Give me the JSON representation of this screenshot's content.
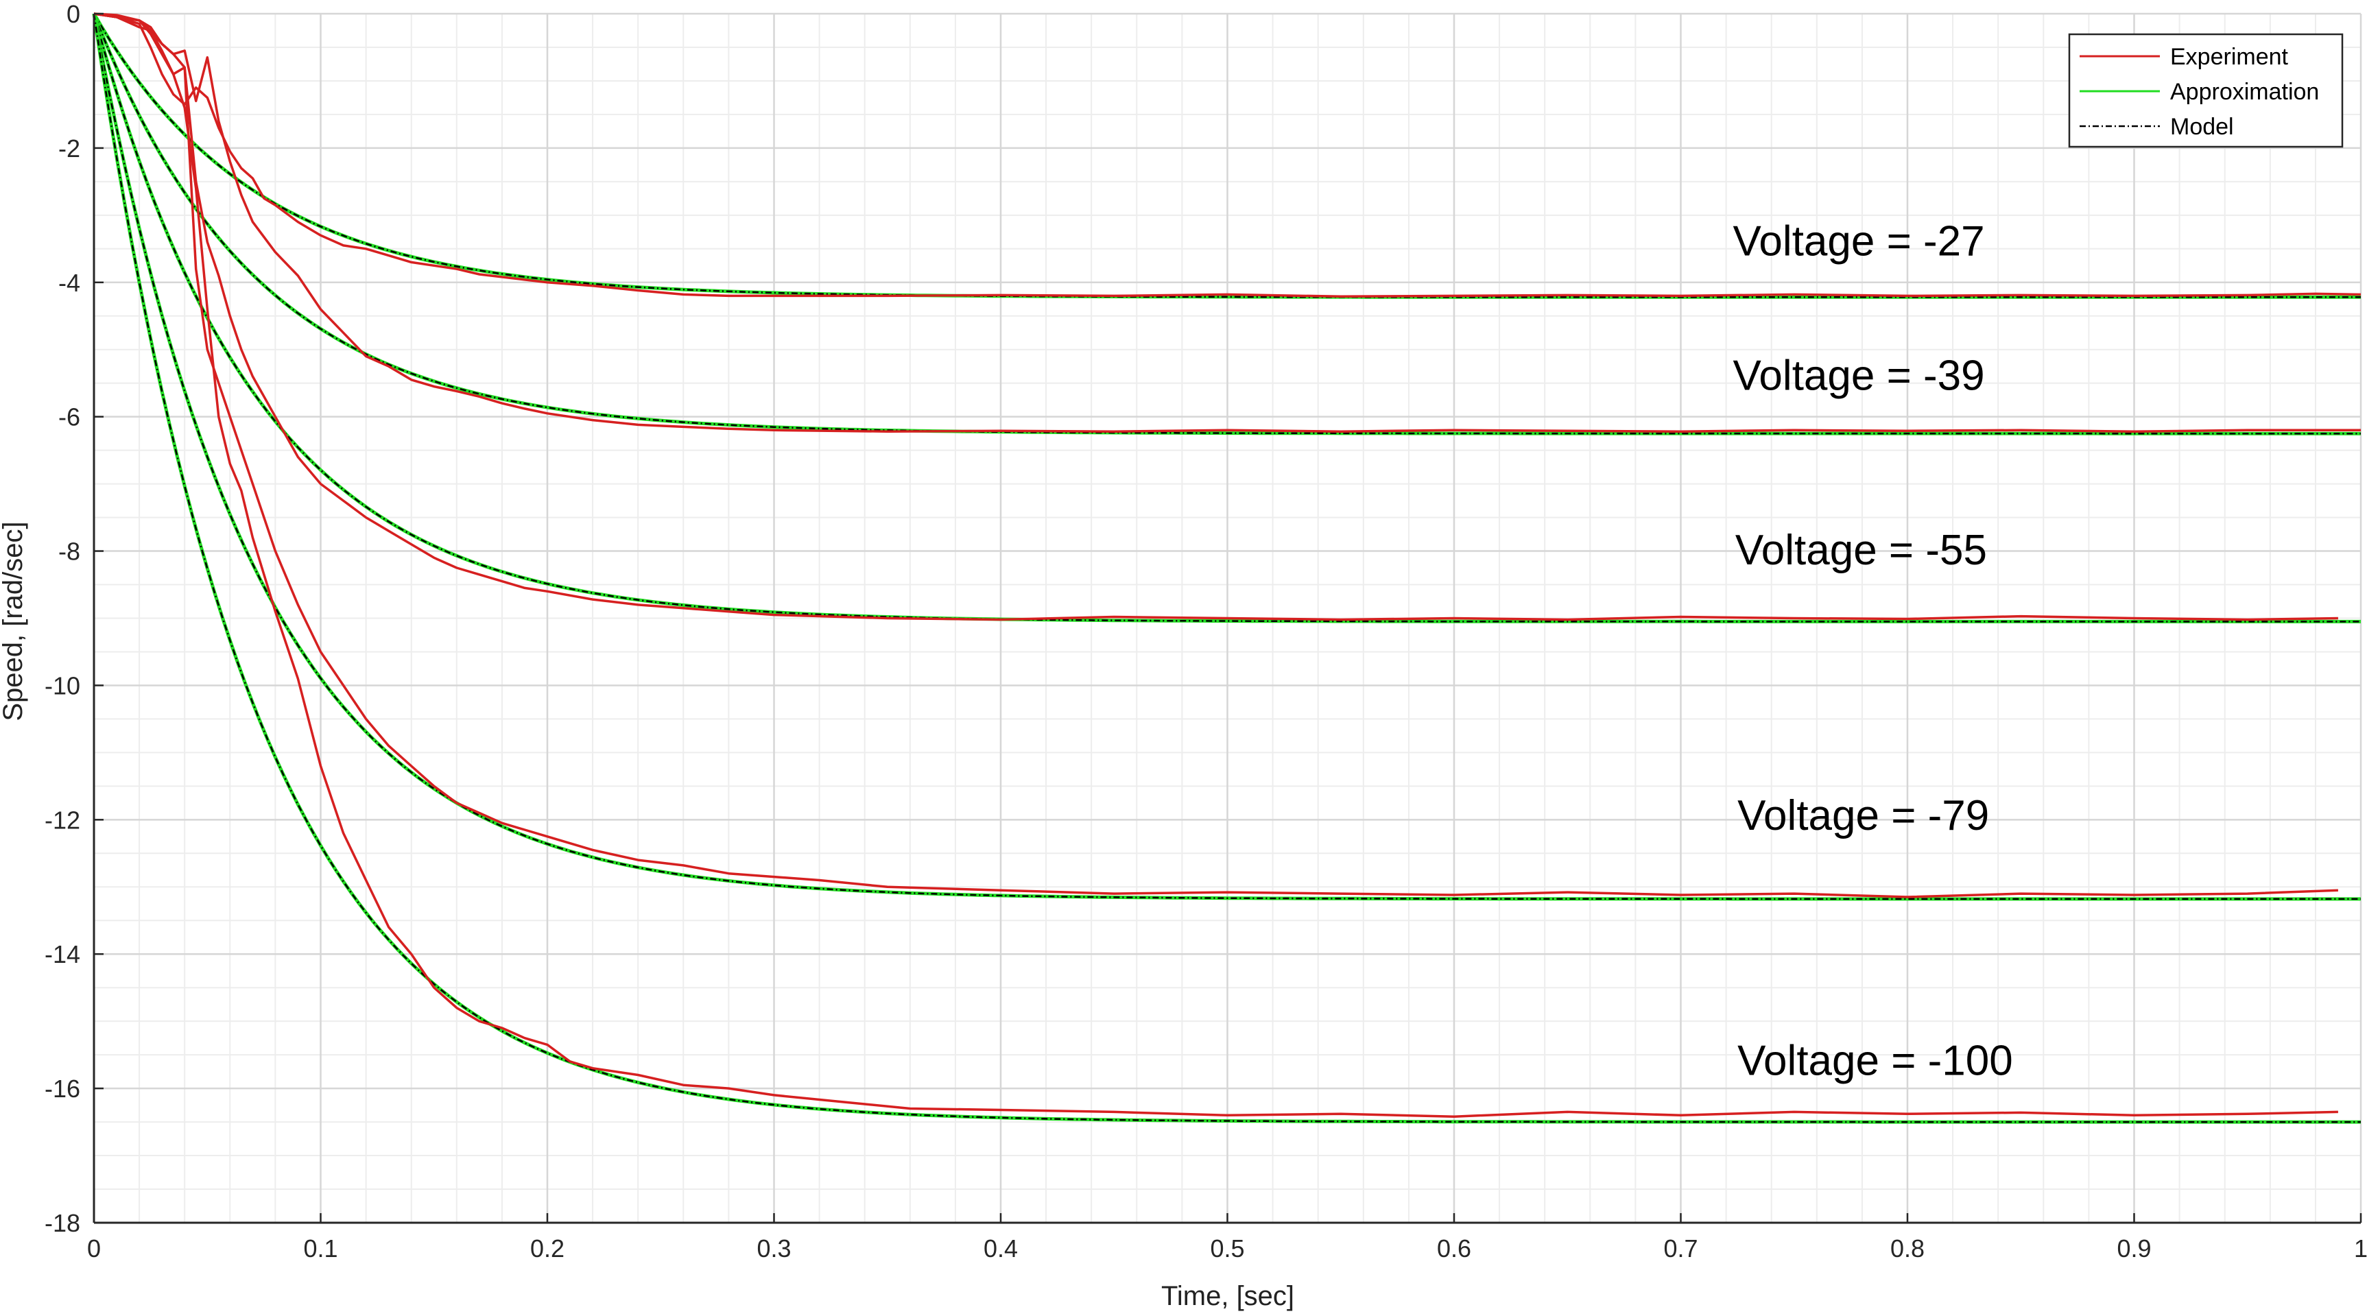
{
  "chart_data": {
    "type": "line",
    "xlabel": "Time, [sec]",
    "ylabel": "Speed, [rad/sec]",
    "xlim": [
      0,
      1
    ],
    "ylim": [
      -18,
      0
    ],
    "xticks": [
      0,
      0.1,
      0.2,
      0.3,
      0.4,
      0.5,
      0.6,
      0.7,
      0.8,
      0.9,
      1
    ],
    "xtick_labels": [
      "0",
      "0.1",
      "0.2",
      "0.3",
      "0.4",
      "0.5",
      "0.6",
      "0.7",
      "0.8",
      "0.9",
      "1"
    ],
    "yticks": [
      0,
      -2,
      -4,
      -6,
      -8,
      -10,
      -12,
      -14,
      -16,
      -18
    ],
    "ytick_labels": [
      "0",
      "-2",
      "-4",
      "-6",
      "-8",
      "-10",
      "-12",
      "-14",
      "-16",
      "-18"
    ],
    "grid": true,
    "minor_grid": true,
    "legend_position": "top-right",
    "legend": [
      {
        "label": "Experiment",
        "color": "#d62020",
        "style": "solid"
      },
      {
        "label": "Approximation",
        "color": "#22dd22",
        "style": "solid"
      },
      {
        "label": "Model",
        "color": "#000000",
        "style": "dashdot"
      }
    ],
    "annotations": [
      {
        "text": "Voltage = -27",
        "x": 0.723,
        "y": -3.6
      },
      {
        "text": "Voltage = -39",
        "x": 0.723,
        "y": -5.6
      },
      {
        "text": "Voltage = -55",
        "x": 0.724,
        "y": -8.2
      },
      {
        "text": "Voltage = -79",
        "x": 0.725,
        "y": -12.15
      },
      {
        "text": "Voltage = -100",
        "x": 0.725,
        "y": -15.8
      }
    ],
    "groups": [
      {
        "voltage": -27,
        "model_steady_state": -4.22,
        "model_time_constant": 0.072,
        "experiment": {
          "x": [
            0,
            0.01,
            0.02,
            0.025,
            0.03,
            0.035,
            0.04,
            0.045,
            0.05,
            0.055,
            0.06,
            0.065,
            0.07,
            0.075,
            0.08,
            0.09,
            0.1,
            0.11,
            0.12,
            0.13,
            0.14,
            0.15,
            0.16,
            0.17,
            0.18,
            0.19,
            0.2,
            0.22,
            0.24,
            0.26,
            0.28,
            0.3,
            0.35,
            0.4,
            0.45,
            0.5,
            0.55,
            0.6,
            0.65,
            0.7,
            0.75,
            0.8,
            0.85,
            0.9,
            0.95,
            0.98,
            1
          ],
          "y": [
            0,
            -0.05,
            -0.15,
            -0.5,
            -0.9,
            -1.2,
            -1.35,
            -1.1,
            -1.25,
            -1.7,
            -2.05,
            -2.3,
            -2.45,
            -2.75,
            -2.85,
            -3.1,
            -3.3,
            -3.45,
            -3.5,
            -3.6,
            -3.7,
            -3.75,
            -3.8,
            -3.88,
            -3.92,
            -3.96,
            -4.0,
            -4.05,
            -4.12,
            -4.18,
            -4.2,
            -4.2,
            -4.2,
            -4.19,
            -4.2,
            -4.18,
            -4.21,
            -4.2,
            -4.19,
            -4.2,
            -4.18,
            -4.2,
            -4.19,
            -4.2,
            -4.19,
            -4.17,
            -4.18
          ]
        }
      },
      {
        "voltage": -39,
        "model_steady_state": -6.25,
        "model_time_constant": 0.072,
        "experiment": {
          "x": [
            0,
            0.01,
            0.02,
            0.025,
            0.03,
            0.035,
            0.04,
            0.045,
            0.05,
            0.055,
            0.06,
            0.065,
            0.07,
            0.08,
            0.09,
            0.1,
            0.11,
            0.12,
            0.13,
            0.14,
            0.15,
            0.16,
            0.17,
            0.18,
            0.19,
            0.2,
            0.22,
            0.24,
            0.26,
            0.28,
            0.3,
            0.35,
            0.4,
            0.45,
            0.5,
            0.55,
            0.6,
            0.65,
            0.7,
            0.75,
            0.8,
            0.85,
            0.9,
            0.95,
            1
          ],
          "y": [
            0,
            -0.02,
            -0.1,
            -0.25,
            -0.45,
            -0.6,
            -0.55,
            -1.3,
            -0.65,
            -1.6,
            -2.2,
            -2.7,
            -3.1,
            -3.55,
            -3.9,
            -4.4,
            -4.75,
            -5.1,
            -5.25,
            -5.45,
            -5.55,
            -5.62,
            -5.7,
            -5.8,
            -5.88,
            -5.95,
            -6.05,
            -6.12,
            -6.15,
            -6.18,
            -6.2,
            -6.22,
            -6.21,
            -6.22,
            -6.2,
            -6.22,
            -6.2,
            -6.21,
            -6.22,
            -6.2,
            -6.21,
            -6.2,
            -6.22,
            -6.2,
            -6.2
          ]
        }
      },
      {
        "voltage": -55,
        "model_steady_state": -9.05,
        "model_time_constant": 0.072,
        "experiment": {
          "x": [
            0,
            0.01,
            0.02,
            0.025,
            0.03,
            0.035,
            0.04,
            0.045,
            0.05,
            0.055,
            0.06,
            0.065,
            0.07,
            0.08,
            0.09,
            0.1,
            0.11,
            0.12,
            0.13,
            0.14,
            0.15,
            0.16,
            0.17,
            0.18,
            0.19,
            0.2,
            0.22,
            0.24,
            0.26,
            0.28,
            0.3,
            0.35,
            0.4,
            0.45,
            0.5,
            0.55,
            0.6,
            0.65,
            0.7,
            0.75,
            0.8,
            0.85,
            0.9,
            0.95,
            0.99
          ],
          "y": [
            0,
            -0.05,
            -0.2,
            -0.25,
            -0.55,
            -0.9,
            -0.8,
            -2.5,
            -3.4,
            -3.9,
            -4.5,
            -5.0,
            -5.4,
            -6.0,
            -6.6,
            -7.0,
            -7.25,
            -7.5,
            -7.7,
            -7.9,
            -8.1,
            -8.25,
            -8.35,
            -8.45,
            -8.55,
            -8.6,
            -8.72,
            -8.8,
            -8.85,
            -8.9,
            -8.95,
            -9.0,
            -9.02,
            -8.98,
            -9.0,
            -9.02,
            -9.0,
            -9.02,
            -8.98,
            -9.0,
            -9.01,
            -8.97,
            -9.0,
            -9.02,
            -9.0
          ]
        }
      },
      {
        "voltage": -79,
        "model_steady_state": -13.18,
        "model_time_constant": 0.072,
        "experiment": {
          "x": [
            0,
            0.01,
            0.02,
            0.025,
            0.03,
            0.035,
            0.04,
            0.045,
            0.05,
            0.055,
            0.06,
            0.065,
            0.07,
            0.08,
            0.09,
            0.1,
            0.11,
            0.12,
            0.13,
            0.14,
            0.15,
            0.16,
            0.17,
            0.18,
            0.19,
            0.2,
            0.22,
            0.24,
            0.26,
            0.28,
            0.3,
            0.32,
            0.35,
            0.4,
            0.45,
            0.5,
            0.55,
            0.6,
            0.65,
            0.7,
            0.75,
            0.8,
            0.85,
            0.9,
            0.95,
            0.99
          ],
          "y": [
            0,
            -0.05,
            -0.1,
            -0.2,
            -0.45,
            -0.6,
            -0.8,
            -3.8,
            -5.0,
            -5.5,
            -6.0,
            -6.5,
            -7.0,
            -8.0,
            -8.8,
            -9.5,
            -10.0,
            -10.5,
            -10.9,
            -11.2,
            -11.5,
            -11.75,
            -11.9,
            -12.05,
            -12.15,
            -12.25,
            -12.45,
            -12.6,
            -12.68,
            -12.8,
            -12.85,
            -12.9,
            -13.0,
            -13.05,
            -13.1,
            -13.08,
            -13.1,
            -13.12,
            -13.08,
            -13.12,
            -13.1,
            -13.15,
            -13.1,
            -13.12,
            -13.1,
            -13.05
          ]
        }
      },
      {
        "voltage": -100,
        "model_steady_state": -16.5,
        "model_time_constant": 0.072,
        "experiment": {
          "x": [
            0,
            0.01,
            0.02,
            0.025,
            0.03,
            0.035,
            0.04,
            0.045,
            0.05,
            0.055,
            0.06,
            0.065,
            0.07,
            0.08,
            0.09,
            0.1,
            0.11,
            0.12,
            0.13,
            0.14,
            0.15,
            0.16,
            0.17,
            0.18,
            0.19,
            0.2,
            0.21,
            0.22,
            0.24,
            0.26,
            0.28,
            0.3,
            0.33,
            0.36,
            0.4,
            0.45,
            0.5,
            0.55,
            0.6,
            0.65,
            0.7,
            0.75,
            0.8,
            0.85,
            0.9,
            0.95,
            0.99
          ],
          "y": [
            0,
            -0.05,
            -0.1,
            -0.3,
            -0.6,
            -0.9,
            -1.4,
            -2.6,
            -4.4,
            -6.0,
            -6.7,
            -7.1,
            -7.8,
            -8.9,
            -9.9,
            -11.2,
            -12.2,
            -12.9,
            -13.6,
            -14.0,
            -14.5,
            -14.8,
            -15.0,
            -15.1,
            -15.25,
            -15.35,
            -15.6,
            -15.7,
            -15.8,
            -15.95,
            -16.0,
            -16.1,
            -16.2,
            -16.3,
            -16.32,
            -16.35,
            -16.4,
            -16.38,
            -16.42,
            -16.35,
            -16.4,
            -16.35,
            -16.38,
            -16.36,
            -16.4,
            -16.38,
            -16.35
          ]
        }
      }
    ]
  }
}
